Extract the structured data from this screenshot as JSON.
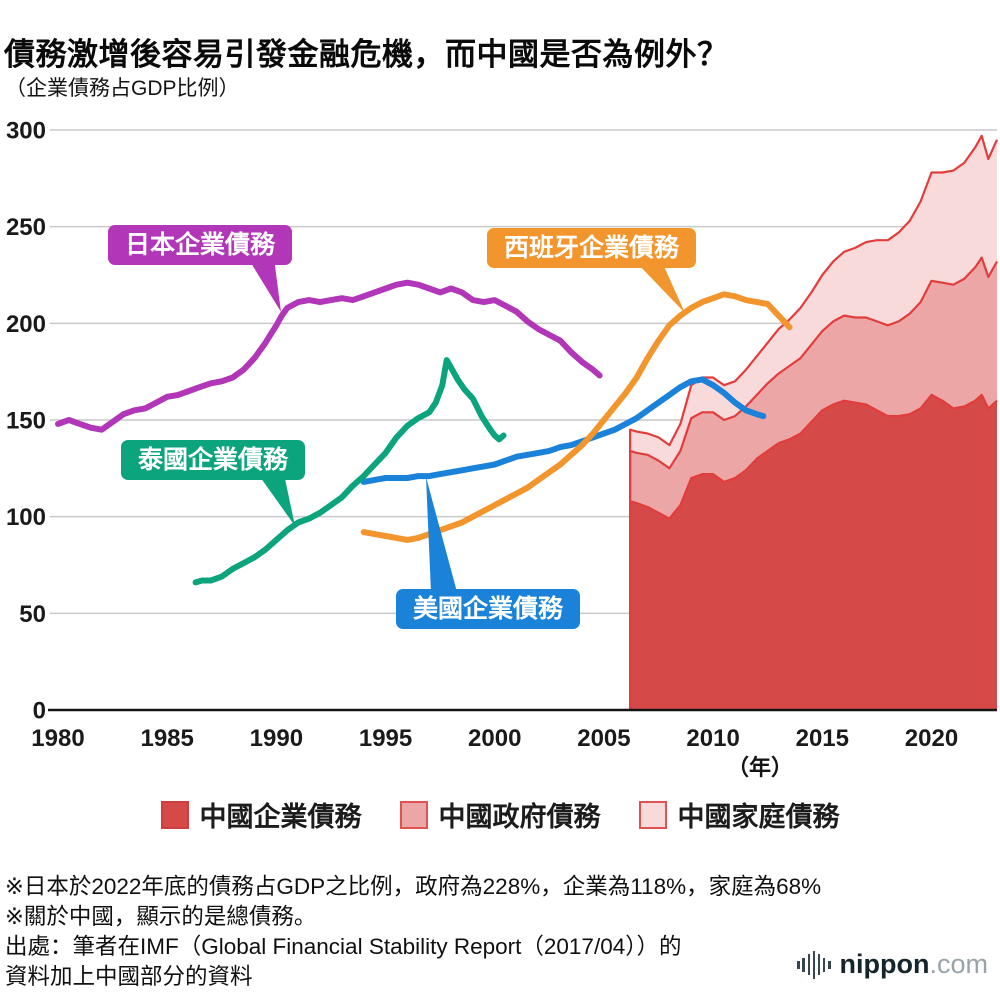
{
  "page": {
    "title": "債務激增後容易引發金融危機，而中國是否為例外？",
    "subtitle": "（企業債務占GDP比例）",
    "unit_label": "（年）"
  },
  "chart_data": {
    "type": "line+stacked-area",
    "title": "債務激增後容易引發金融危機，而中國是否為例外？",
    "ylabel": "（企業債務占GDP比例）",
    "xlabel": "（年）",
    "ylim": [
      0,
      300
    ],
    "xlim": [
      1980,
      2023
    ],
    "y_ticks": [
      0,
      50,
      100,
      150,
      200,
      250,
      300
    ],
    "x_ticks": [
      1980,
      1985,
      1990,
      1995,
      2000,
      2005,
      2010,
      2015,
      2020
    ],
    "grid": "horizontal",
    "line_series": [
      {
        "id": "japan",
        "label": "日本企業債務",
        "color": "#b136b8",
        "points": [
          [
            1980,
            148
          ],
          [
            1980.5,
            150
          ],
          [
            1981,
            148
          ],
          [
            1981.5,
            146
          ],
          [
            1982,
            145
          ],
          [
            1982.5,
            149
          ],
          [
            1983,
            153
          ],
          [
            1983.5,
            155
          ],
          [
            1984,
            156
          ],
          [
            1984.5,
            159
          ],
          [
            1985,
            162
          ],
          [
            1985.5,
            163
          ],
          [
            1986,
            165
          ],
          [
            1986.5,
            167
          ],
          [
            1987,
            169
          ],
          [
            1987.5,
            170
          ],
          [
            1988,
            172
          ],
          [
            1988.5,
            176
          ],
          [
            1989,
            182
          ],
          [
            1989.5,
            190
          ],
          [
            1990,
            199
          ],
          [
            1990.25,
            204
          ],
          [
            1990.5,
            208
          ],
          [
            1991,
            211
          ],
          [
            1991.5,
            212
          ],
          [
            1992,
            211
          ],
          [
            1992.5,
            212
          ],
          [
            1993,
            213
          ],
          [
            1993.5,
            212
          ],
          [
            1994,
            214
          ],
          [
            1994.5,
            216
          ],
          [
            1995,
            218
          ],
          [
            1995.5,
            220
          ],
          [
            1996,
            221
          ],
          [
            1996.5,
            220
          ],
          [
            1997,
            218
          ],
          [
            1997.5,
            216
          ],
          [
            1998,
            218
          ],
          [
            1998.5,
            216
          ],
          [
            1999,
            212
          ],
          [
            1999.5,
            211
          ],
          [
            2000,
            212
          ],
          [
            2000.5,
            209
          ],
          [
            2001,
            206
          ],
          [
            2001.5,
            201
          ],
          [
            2002,
            197
          ],
          [
            2002.5,
            194
          ],
          [
            2003,
            191
          ],
          [
            2003.5,
            185
          ],
          [
            2004,
            180
          ],
          [
            2004.5,
            176
          ],
          [
            2004.8,
            173
          ]
        ]
      },
      {
        "id": "thailand",
        "label": "泰國企業債務",
        "color": "#0ba47d",
        "points": [
          [
            1986.3,
            66
          ],
          [
            1986.6,
            67
          ],
          [
            1987,
            67
          ],
          [
            1987.5,
            69
          ],
          [
            1988,
            73
          ],
          [
            1988.5,
            76
          ],
          [
            1989,
            79
          ],
          [
            1989.5,
            83
          ],
          [
            1990,
            88
          ],
          [
            1990.5,
            93
          ],
          [
            1991,
            97
          ],
          [
            1991.5,
            99
          ],
          [
            1992,
            102
          ],
          [
            1992.5,
            106
          ],
          [
            1993,
            110
          ],
          [
            1993.5,
            116
          ],
          [
            1994,
            121
          ],
          [
            1994.5,
            127
          ],
          [
            1995,
            133
          ],
          [
            1995.5,
            141
          ],
          [
            1996,
            147
          ],
          [
            1996.5,
            151
          ],
          [
            1997,
            154
          ],
          [
            1997.3,
            159
          ],
          [
            1997.6,
            168
          ],
          [
            1997.8,
            181
          ],
          [
            1998,
            177
          ],
          [
            1998.3,
            171
          ],
          [
            1998.6,
            166
          ],
          [
            1999,
            161
          ],
          [
            1999.4,
            152
          ],
          [
            1999.8,
            145
          ],
          [
            2000,
            142
          ],
          [
            2000.2,
            140
          ],
          [
            2000.4,
            142
          ]
        ]
      },
      {
        "id": "us",
        "label": "美國企業債務",
        "color": "#1a82d8",
        "points": [
          [
            1994,
            118
          ],
          [
            1994.5,
            119
          ],
          [
            1995,
            120
          ],
          [
            1995.5,
            120
          ],
          [
            1996,
            120
          ],
          [
            1996.5,
            121
          ],
          [
            1997,
            121
          ],
          [
            1997.5,
            122
          ],
          [
            1998,
            123
          ],
          [
            1998.5,
            124
          ],
          [
            1999,
            125
          ],
          [
            1999.5,
            126
          ],
          [
            2000,
            127
          ],
          [
            2000.5,
            129
          ],
          [
            2001,
            131
          ],
          [
            2001.5,
            132
          ],
          [
            2002,
            133
          ],
          [
            2002.5,
            134
          ],
          [
            2003,
            136
          ],
          [
            2003.5,
            137
          ],
          [
            2004,
            139
          ],
          [
            2004.5,
            141
          ],
          [
            2005,
            143
          ],
          [
            2005.5,
            145
          ],
          [
            2006,
            148
          ],
          [
            2006.5,
            151
          ],
          [
            2007,
            155
          ],
          [
            2007.5,
            159
          ],
          [
            2008,
            163
          ],
          [
            2008.5,
            167
          ],
          [
            2009,
            170
          ],
          [
            2009.5,
            171
          ],
          [
            2010,
            168
          ],
          [
            2010.5,
            164
          ],
          [
            2011,
            159
          ],
          [
            2011.5,
            155
          ],
          [
            2012,
            153
          ],
          [
            2012.3,
            152
          ]
        ]
      },
      {
        "id": "spain",
        "label": "西班牙企業債務",
        "color": "#f2952c",
        "points": [
          [
            1994,
            92
          ],
          [
            1994.5,
            91
          ],
          [
            1995,
            90
          ],
          [
            1995.5,
            89
          ],
          [
            1996,
            88
          ],
          [
            1996.5,
            89
          ],
          [
            1997,
            91
          ],
          [
            1997.5,
            93
          ],
          [
            1998,
            95
          ],
          [
            1998.5,
            97
          ],
          [
            1999,
            100
          ],
          [
            1999.5,
            103
          ],
          [
            2000,
            106
          ],
          [
            2000.5,
            109
          ],
          [
            2001,
            112
          ],
          [
            2001.5,
            115
          ],
          [
            2002,
            119
          ],
          [
            2002.5,
            123
          ],
          [
            2003,
            127
          ],
          [
            2003.5,
            132
          ],
          [
            2004,
            137
          ],
          [
            2004.5,
            143
          ],
          [
            2005,
            150
          ],
          [
            2005.5,
            157
          ],
          [
            2006,
            164
          ],
          [
            2006.5,
            172
          ],
          [
            2007,
            182
          ],
          [
            2007.5,
            191
          ],
          [
            2008,
            199
          ],
          [
            2008.5,
            204
          ],
          [
            2009,
            208
          ],
          [
            2009.5,
            211
          ],
          [
            2010,
            213
          ],
          [
            2010.5,
            215
          ],
          [
            2011,
            214
          ],
          [
            2011.5,
            212
          ],
          [
            2012,
            211
          ],
          [
            2012.5,
            210
          ],
          [
            2013,
            204
          ],
          [
            2013.5,
            198
          ]
        ]
      }
    ],
    "stacked_area_series": {
      "stroke": "#e23d3d",
      "x": [
        2006.2,
        2006.5,
        2007,
        2007.5,
        2008,
        2008.5,
        2009,
        2009.5,
        2010,
        2010.5,
        2011,
        2011.5,
        2012,
        2012.5,
        2013,
        2013.5,
        2014,
        2014.5,
        2015,
        2015.5,
        2016,
        2016.5,
        2017,
        2017.5,
        2018,
        2018.5,
        2019,
        2019.5,
        2020,
        2020.5,
        2021,
        2021.5,
        2022,
        2022.3,
        2022.6,
        2023
      ],
      "layers": [
        {
          "id": "china-corporate",
          "label": "中國企業債務",
          "fill": "#d64949",
          "values": [
            108,
            107,
            105,
            102,
            99,
            106,
            120,
            122,
            122,
            118,
            120,
            124,
            130,
            134,
            138,
            140,
            143,
            149,
            155,
            158,
            160,
            159,
            158,
            155,
            152,
            152,
            153,
            156,
            163,
            160,
            156,
            157,
            160,
            163,
            156,
            160
          ]
        },
        {
          "id": "china-government",
          "label": "中國政府債務",
          "fill": "#eca6a6",
          "values": [
            26,
            26,
            27,
            27,
            26,
            28,
            31,
            32,
            32,
            32,
            32,
            33,
            33,
            35,
            36,
            38,
            39,
            40,
            41,
            43,
            44,
            44,
            45,
            46,
            47,
            49,
            52,
            55,
            59,
            61,
            64,
            66,
            69,
            71,
            68,
            72
          ]
        },
        {
          "id": "china-household",
          "label": "中國家庭債務",
          "fill": "#f9dada",
          "values": [
            11,
            11,
            11,
            12,
            12,
            14,
            17,
            18,
            18,
            18,
            18,
            19,
            20,
            21,
            23,
            24,
            26,
            27,
            29,
            31,
            33,
            36,
            39,
            42,
            44,
            46,
            48,
            52,
            56,
            57,
            59,
            60,
            62,
            63,
            61,
            63
          ]
        }
      ]
    }
  },
  "legend": {
    "items": [
      {
        "label": "中國企業債務",
        "fill": "#d64949",
        "border": "#cf3d3d"
      },
      {
        "label": "中國政府債務",
        "fill": "#eca6a6",
        "border": "#e05252"
      },
      {
        "label": "中國家庭債務",
        "fill": "#f9dada",
        "border": "#e05252"
      }
    ]
  },
  "footnotes": [
    "※日本於2022年底的債務占GDP之比例，政府為228%，企業為118%，家庭為68%",
    "※關於中國，顯示的是總債務。",
    "出處：筆者在IMF（Global Financial Stability Report（2017/04））的資料加上中國部分的資料"
  ],
  "branding": {
    "logo_icon": "soundwave-bars-icon",
    "logo_text_primary": "nippon",
    "logo_text_secondary": ".com"
  }
}
